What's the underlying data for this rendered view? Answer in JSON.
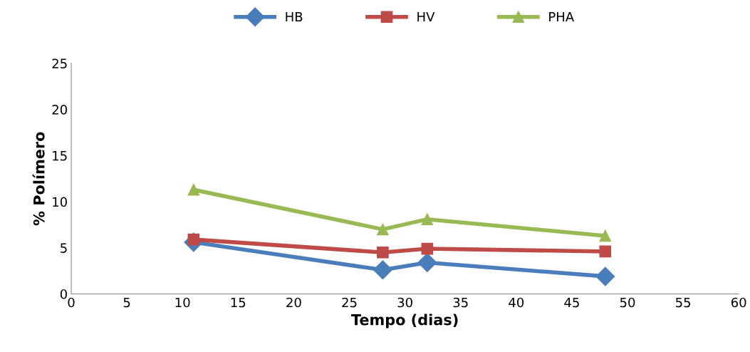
{
  "chart_data": {
    "type": "line",
    "xlabel": "Tempo (dias)",
    "ylabel": "% Polímero",
    "x": [
      11,
      28,
      32,
      48
    ],
    "series": [
      {
        "name": "HB",
        "color": "#4a7ebb",
        "marker": "diamond",
        "values": [
          5.6,
          2.6,
          3.4,
          1.9
        ]
      },
      {
        "name": "HV",
        "color": "#be4b48",
        "marker": "square",
        "values": [
          5.9,
          4.5,
          4.9,
          4.6
        ]
      },
      {
        "name": "PHA",
        "color": "#98b954",
        "marker": "triangle",
        "values": [
          11.3,
          7.0,
          8.1,
          6.3
        ]
      }
    ],
    "xlim": [
      0,
      60
    ],
    "xticks": [
      0,
      5,
      10,
      15,
      20,
      25,
      30,
      35,
      40,
      45,
      50,
      55,
      60
    ],
    "ylim": [
      0,
      25
    ],
    "yticks": [
      0,
      5,
      10,
      15,
      20,
      25
    ],
    "grid": false,
    "legend": "top",
    "line_style": "solid"
  }
}
